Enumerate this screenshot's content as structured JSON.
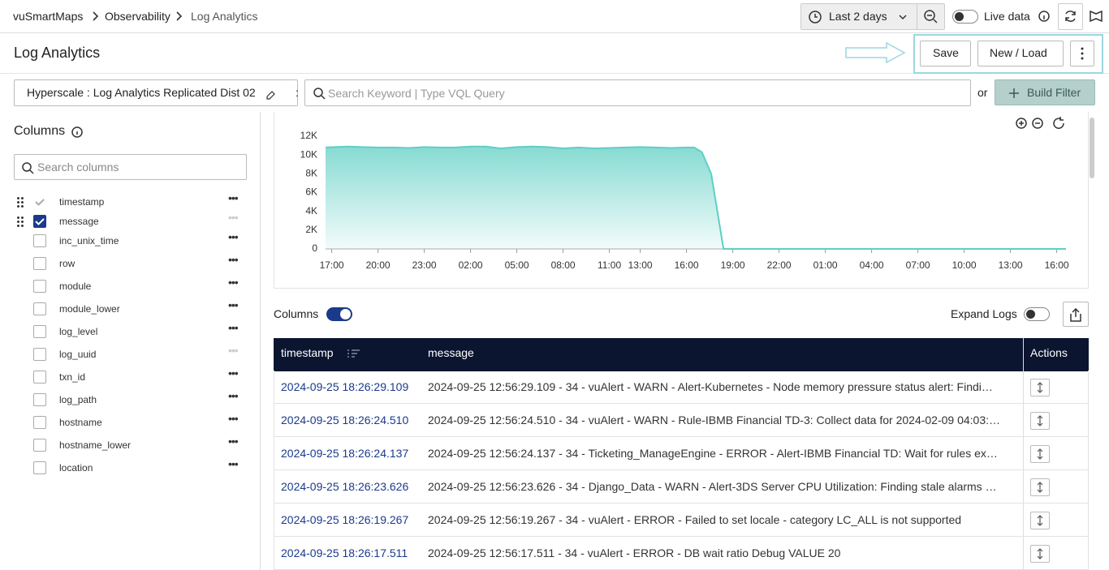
{
  "header": {
    "breadcrumbs": [
      "vuSmartMaps",
      "Observability",
      "Log Analytics"
    ],
    "time_range": "Last 2 days",
    "live_data": "Live data"
  },
  "toolbar": {
    "title": "Log Analytics",
    "save": "Save",
    "new_load": "New / Load"
  },
  "query": {
    "source": "Hyperscale : Log Analytics Replicated Dist 02",
    "separator": ":",
    "placeholder": "Search Keyword | Type VQL Query",
    "or": "or",
    "build_filter": "Build Filter"
  },
  "columns_panel": {
    "title": "Columns",
    "search_placeholder": "Search columns",
    "items": [
      {
        "label": "timestamp",
        "checked": true
      },
      {
        "label": "message",
        "checked": true
      },
      {
        "label": "inc_unix_time",
        "checked": false
      },
      {
        "label": "row",
        "checked": false
      },
      {
        "label": "module",
        "checked": false
      },
      {
        "label": "module_lower",
        "checked": false
      },
      {
        "label": "log_level",
        "checked": false
      },
      {
        "label": "log_uuid",
        "checked": false
      },
      {
        "label": "txn_id",
        "checked": false
      },
      {
        "label": "log_path",
        "checked": false
      },
      {
        "label": "hostname",
        "checked": false
      },
      {
        "label": "hostname_lower",
        "checked": false
      },
      {
        "label": "location",
        "checked": false
      }
    ]
  },
  "chart_data": {
    "type": "area",
    "color": "#5fcfc4",
    "x": [
      -0.4,
      1,
      2,
      3,
      4,
      5,
      6,
      7,
      8,
      9,
      10,
      11,
      12,
      13,
      14,
      15,
      16,
      17,
      18,
      19,
      20,
      21,
      22,
      23,
      23.5,
      24,
      24.6,
      25,
      25.4,
      30,
      35,
      40,
      47.6
    ],
    "values": [
      10800,
      10900,
      10850,
      10800,
      10800,
      10750,
      10850,
      10800,
      10800,
      10900,
      10900,
      10700,
      10850,
      10900,
      10850,
      10700,
      10800,
      10700,
      10750,
      10800,
      10850,
      10800,
      10750,
      10800,
      10800,
      10300,
      8000,
      4000,
      0,
      0,
      0,
      0,
      0
    ],
    "xlim": [
      -0.4,
      47.6
    ],
    "xticks": [
      {
        "value": 0,
        "label": "17:00"
      },
      {
        "value": 3,
        "label": "20:00"
      },
      {
        "value": 6,
        "label": "23:00"
      },
      {
        "value": 9,
        "label": "02:00"
      },
      {
        "value": 12,
        "label": "05:00"
      },
      {
        "value": 15,
        "label": "08:00"
      },
      {
        "value": 18,
        "label": "11:00"
      },
      {
        "value": 20,
        "label": "13:00"
      },
      {
        "value": 23,
        "label": "16:00"
      },
      {
        "value": 26,
        "label": "19:00"
      },
      {
        "value": 29,
        "label": "22:00"
      },
      {
        "value": 32,
        "label": "01:00"
      },
      {
        "value": 35,
        "label": "04:00"
      },
      {
        "value": 38,
        "label": "07:00"
      },
      {
        "value": 41,
        "label": "10:00"
      },
      {
        "value": 44,
        "label": "13:00"
      },
      {
        "value": 47,
        "label": "16:00"
      }
    ],
    "ylim": [
      0,
      12000
    ],
    "yticks": [
      0,
      {
        "value": 2000,
        "label": "2K"
      },
      {
        "value": 4000,
        "label": "4K"
      },
      {
        "value": 6000,
        "label": "6K"
      },
      {
        "value": 8000,
        "label": "8K"
      },
      {
        "value": 10000,
        "label": "10K"
      },
      {
        "value": 12000,
        "label": "12K"
      }
    ]
  },
  "logs": {
    "columns_label": "Columns",
    "expand_logs": "Expand Logs",
    "table": {
      "headers": [
        "timestamp",
        "message",
        "Actions"
      ],
      "rows": [
        [
          "2024-09-25 18:26:29.109",
          "2024-09-25 12:56:29.109 - 34 - vuAlert - WARN - Alert-Kubernetes - Node memory pressure status alert: Findi…"
        ],
        [
          "2024-09-25 18:26:24.510",
          "2024-09-25 12:56:24.510 - 34 - vuAlert - WARN - Rule-IBMB Financial TD-3: Collect data for 2024-02-09 04:03:…"
        ],
        [
          "2024-09-25 18:26:24.137",
          "2024-09-25 12:56:24.137 - 34 - Ticketing_ManageEngine - ERROR - Alert-IBMB Financial TD: Wait for rules ex…"
        ],
        [
          "2024-09-25 18:26:23.626",
          "2024-09-25 12:56:23.626 - 34 - Django_Data - WARN - Alert-3DS Server CPU Utilization: Finding stale alarms …"
        ],
        [
          "2024-09-25 18:26:19.267",
          "2024-09-25 12:56:19.267 - 34 - vuAlert - ERROR - Failed to set locale - category LC_ALL is not supported"
        ],
        [
          "2024-09-25 18:26:17.511",
          "2024-09-25 12:56:17.511 - 34 - vuAlert - ERROR - DB wait ratio Debug VALUE 20"
        ]
      ]
    }
  }
}
